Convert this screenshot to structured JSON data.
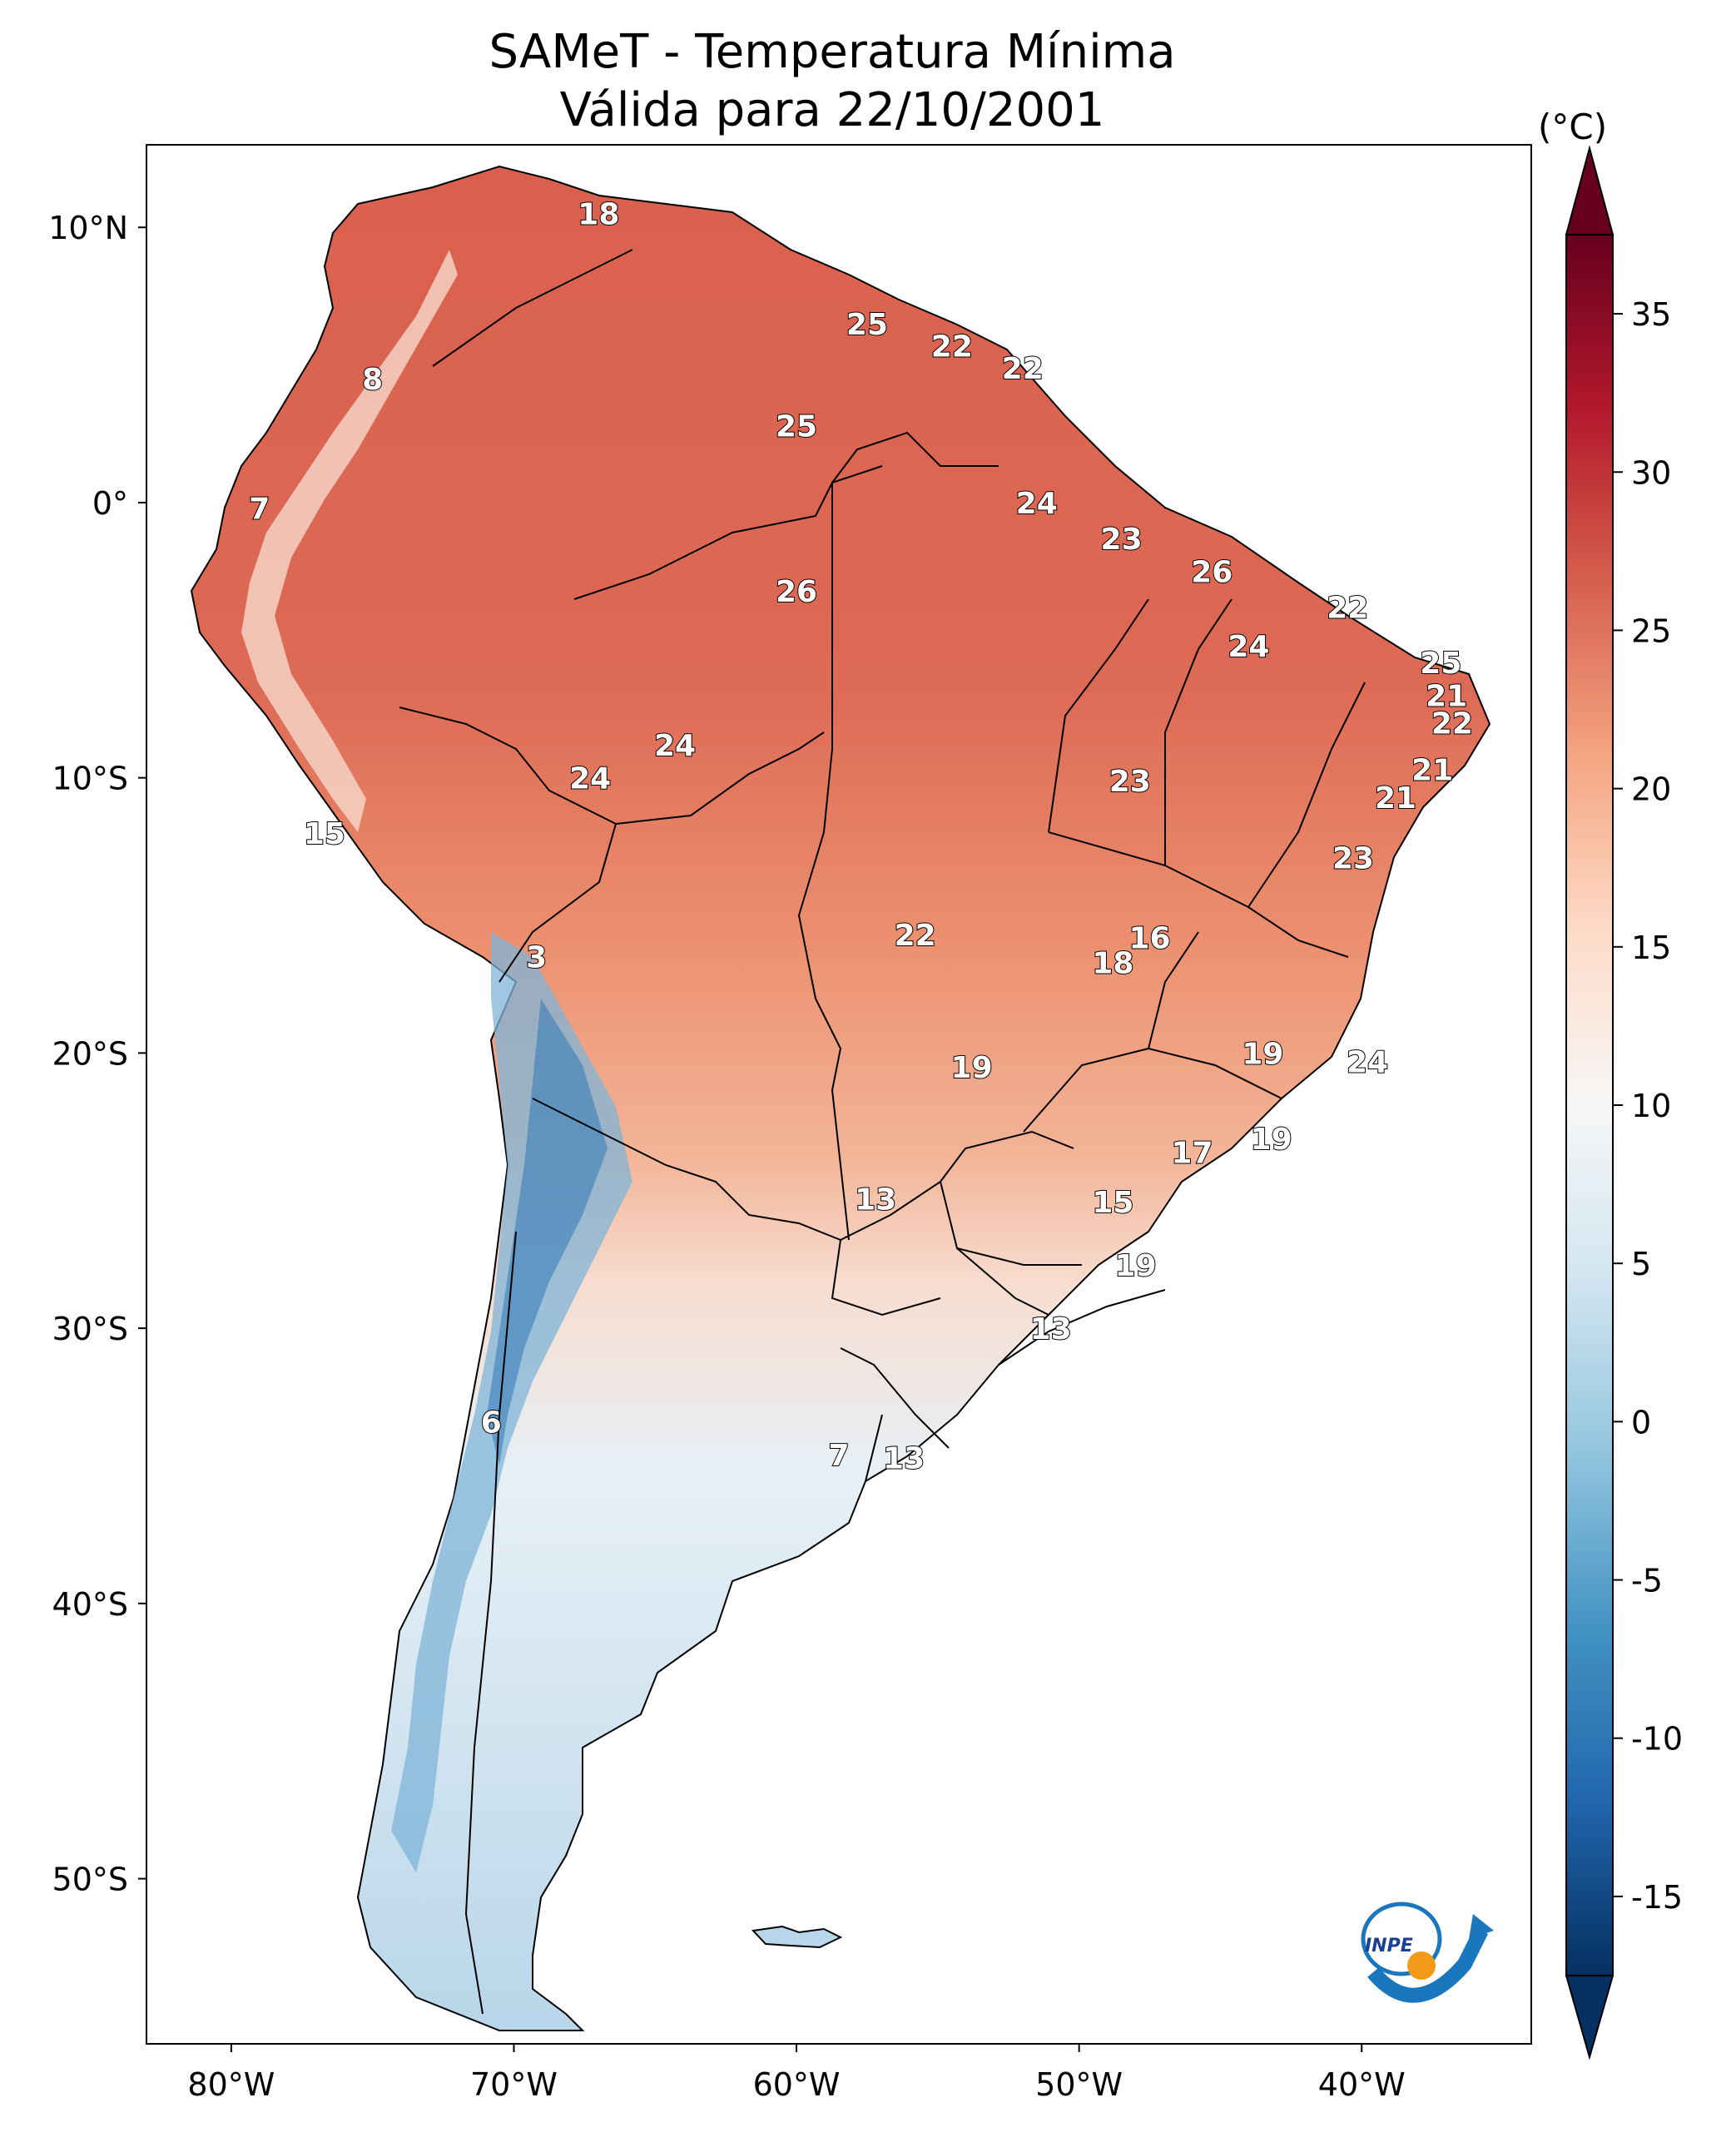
{
  "title": {
    "line1": "SAMeT - Temperatura Mínima",
    "line2": "Válida para 22/10/2001"
  },
  "colorbar": {
    "unit": "(°C)",
    "ticks": [
      "35",
      "30",
      "25",
      "20",
      "15",
      "10",
      "5",
      "0",
      "-5",
      "-10",
      "-15"
    ],
    "colors": [
      "#67001f",
      "#b2182b",
      "#d6604d",
      "#f4a582",
      "#fddbc7",
      "#f7f7f7",
      "#d1e5f0",
      "#92c5de",
      "#4393c3",
      "#2166ac",
      "#053061"
    ]
  },
  "map": {
    "lat_labels": [
      "10°N",
      "0°",
      "10°S",
      "20°S",
      "30°S",
      "40°S",
      "50°S"
    ],
    "lon_labels": [
      "80°W",
      "70°W",
      "60°W",
      "50°W",
      "40°W"
    ],
    "logo_text": "INPE"
  },
  "chart_data": {
    "type": "heatmap",
    "title": "SAMeT - Temperatura Mínima Válida para 22/10/2001",
    "value_unit": "°C",
    "xlim": [
      -83,
      -34
    ],
    "ylim": [
      -56,
      13
    ],
    "colorbar_range": [
      -15,
      35
    ],
    "points": [
      {
        "lon": -67,
        "lat": 10.5,
        "value": 18
      },
      {
        "lon": -75,
        "lat": 4.5,
        "value": 8
      },
      {
        "lon": -57.5,
        "lat": 6.5,
        "value": 25
      },
      {
        "lon": -54.5,
        "lat": 5.7,
        "value": 22
      },
      {
        "lon": -52,
        "lat": 4.9,
        "value": 22
      },
      {
        "lon": -60,
        "lat": 2.8,
        "value": 25
      },
      {
        "lon": -79,
        "lat": -0.2,
        "value": 7
      },
      {
        "lon": -51.5,
        "lat": 0,
        "value": 24
      },
      {
        "lon": -48.5,
        "lat": -1.3,
        "value": 23
      },
      {
        "lon": -60,
        "lat": -3.2,
        "value": 26
      },
      {
        "lon": -45.3,
        "lat": -2.5,
        "value": 26
      },
      {
        "lon": -40.5,
        "lat": -3.8,
        "value": 22
      },
      {
        "lon": -44,
        "lat": -5.2,
        "value": 24
      },
      {
        "lon": -37.2,
        "lat": -5.8,
        "value": 25
      },
      {
        "lon": -37,
        "lat": -7,
        "value": 21
      },
      {
        "lon": -36.8,
        "lat": -8,
        "value": 22
      },
      {
        "lon": -37.5,
        "lat": -9.7,
        "value": 21
      },
      {
        "lon": -38.8,
        "lat": -10.7,
        "value": 21
      },
      {
        "lon": -64.3,
        "lat": -8.8,
        "value": 24
      },
      {
        "lon": -67.3,
        "lat": -10,
        "value": 24
      },
      {
        "lon": -48.2,
        "lat": -10.1,
        "value": 23
      },
      {
        "lon": -76.7,
        "lat": -12,
        "value": 15
      },
      {
        "lon": -40.3,
        "lat": -12.9,
        "value": 23
      },
      {
        "lon": -55.8,
        "lat": -15.7,
        "value": 22
      },
      {
        "lon": -47.5,
        "lat": -15.8,
        "value": 16
      },
      {
        "lon": -48.8,
        "lat": -16.7,
        "value": 18
      },
      {
        "lon": -69.2,
        "lat": -16.5,
        "value": 3
      },
      {
        "lon": -53.8,
        "lat": -20.5,
        "value": 19
      },
      {
        "lon": -43.5,
        "lat": -20,
        "value": 19
      },
      {
        "lon": -39.8,
        "lat": -20.3,
        "value": 24
      },
      {
        "lon": -46,
        "lat": -23.6,
        "value": 17
      },
      {
        "lon": -43.2,
        "lat": -23.1,
        "value": 19
      },
      {
        "lon": -57.2,
        "lat": -25.3,
        "value": 13
      },
      {
        "lon": -48.8,
        "lat": -25.4,
        "value": 15
      },
      {
        "lon": -48,
        "lat": -27.7,
        "value": 19
      },
      {
        "lon": -51,
        "lat": -30,
        "value": 13
      },
      {
        "lon": -70.8,
        "lat": -33.4,
        "value": 6
      },
      {
        "lon": -58.5,
        "lat": -34.6,
        "value": 7
      },
      {
        "lon": -56.2,
        "lat": -34.7,
        "value": 13
      }
    ]
  }
}
